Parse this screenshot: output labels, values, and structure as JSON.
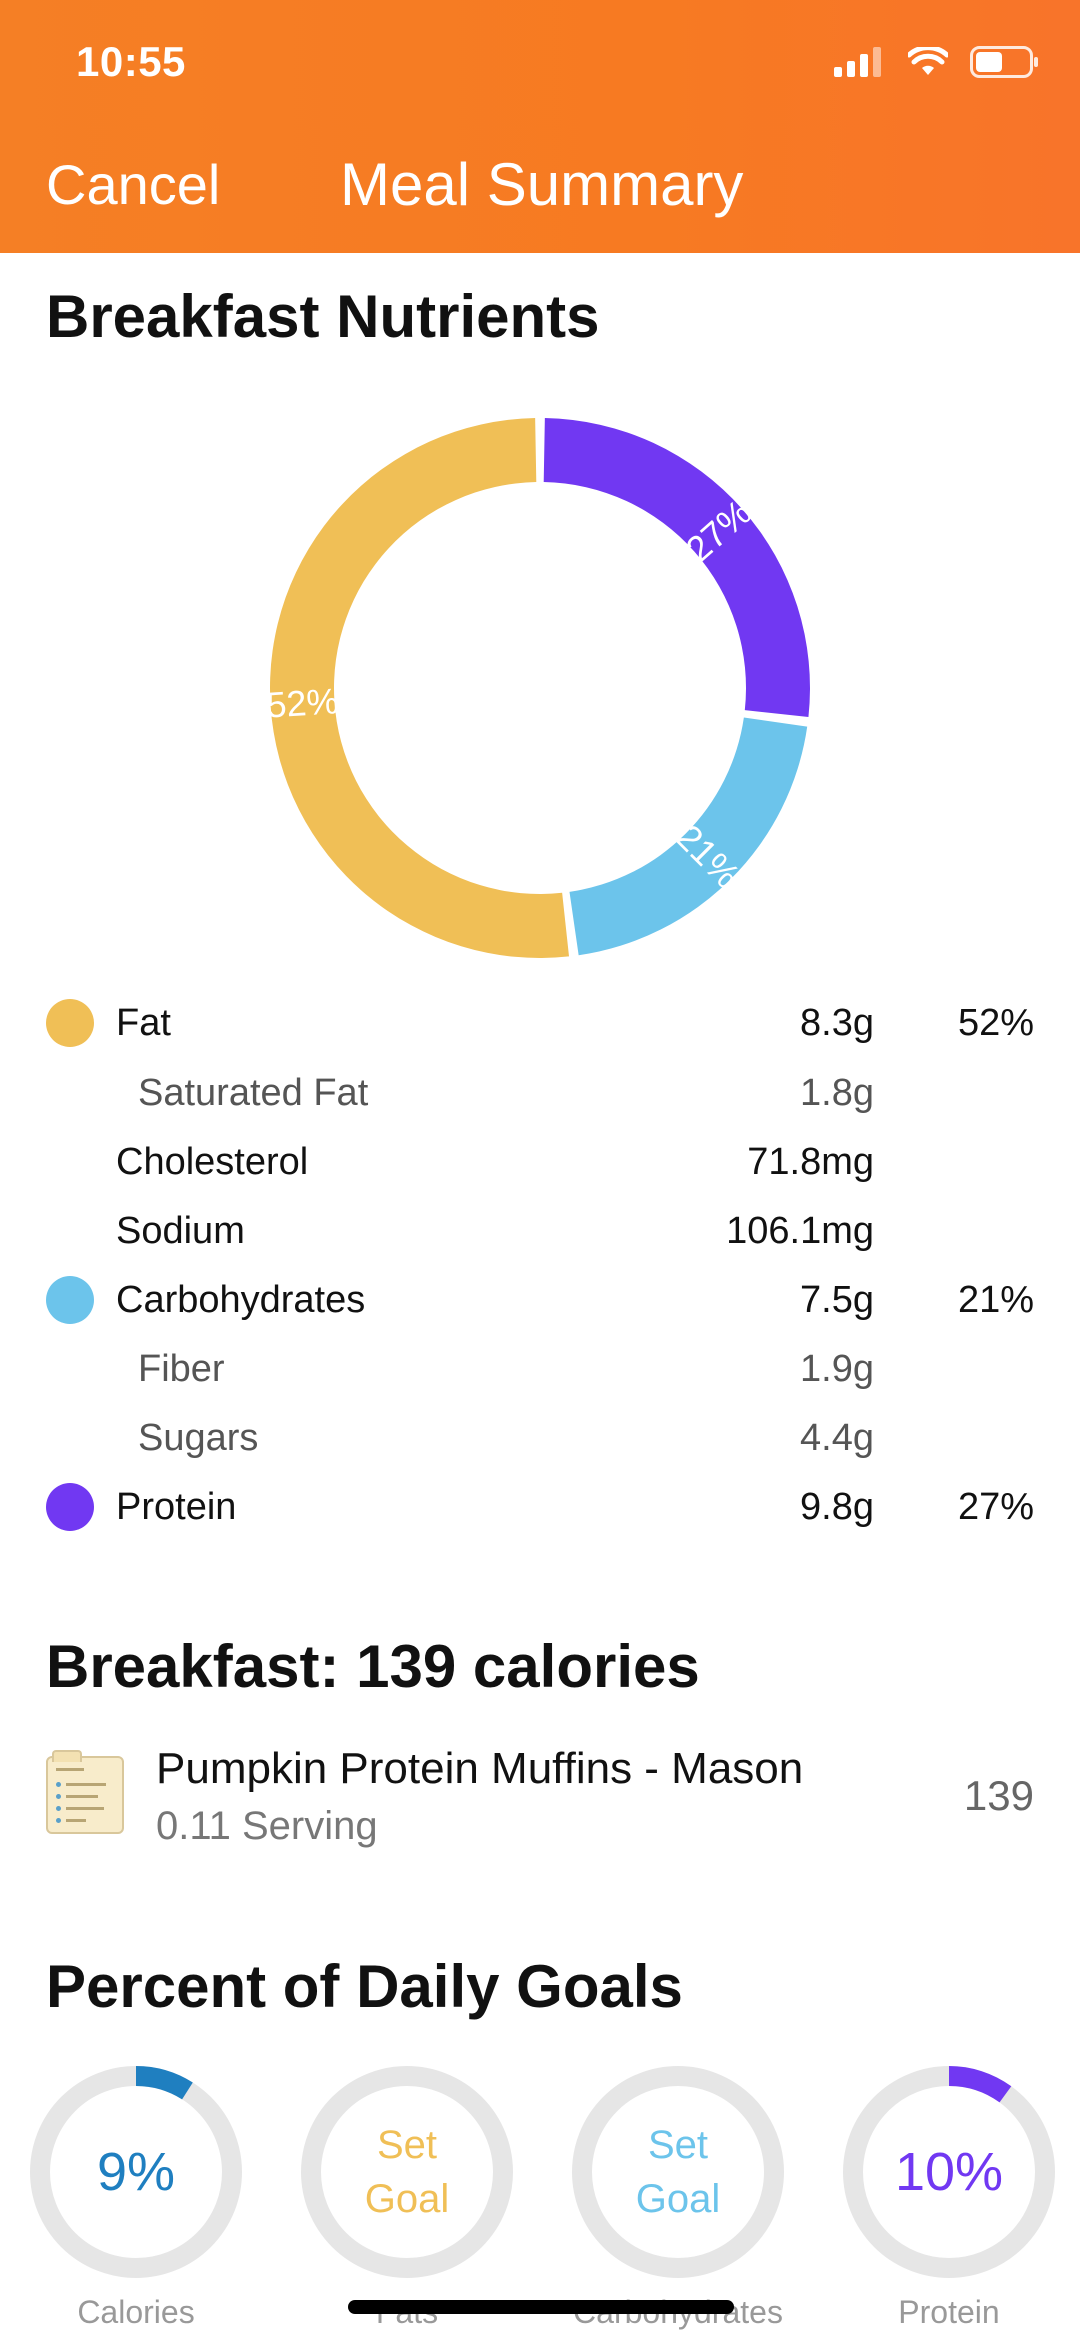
{
  "status_bar": {
    "time": "10:55"
  },
  "header": {
    "cancel_label": "Cancel",
    "title": "Meal Summary"
  },
  "nutrients_section": {
    "title": "Breakfast Nutrients",
    "chart_data": {
      "type": "pie",
      "donut": true,
      "categories": [
        "Fat",
        "Carbohydrates",
        "Protein"
      ],
      "values": [
        52,
        21,
        27
      ],
      "labels": [
        "52%",
        "21%",
        "27%"
      ],
      "colors": [
        "#f0bf56",
        "#6cc4eb",
        "#7138f2"
      ]
    },
    "rows": [
      {
        "name": "Fat",
        "amount": "8.3g",
        "percent": "52%",
        "color": "#f0bf56"
      },
      {
        "name": "Saturated Fat",
        "amount": "1.8g",
        "percent": ""
      },
      {
        "name": "Cholesterol",
        "amount": "71.8mg",
        "percent": ""
      },
      {
        "name": "Sodium",
        "amount": "106.1mg",
        "percent": ""
      },
      {
        "name": "Carbohydrates",
        "amount": "7.5g",
        "percent": "21%",
        "color": "#6cc4eb"
      },
      {
        "name": "Fiber",
        "amount": "1.9g",
        "percent": ""
      },
      {
        "name": "Sugars",
        "amount": "4.4g",
        "percent": ""
      },
      {
        "name": "Protein",
        "amount": "9.8g",
        "percent": "27%",
        "color": "#7138f2"
      }
    ]
  },
  "meal_section": {
    "title": "Breakfast: 139 calories",
    "items": [
      {
        "icon": "recipe-card-icon",
        "name": "Pumpkin Protein Muffins - Mason",
        "serving": "0.11 Serving",
        "calories": "139"
      }
    ]
  },
  "goals_section": {
    "title": "Percent of Daily Goals",
    "goals": [
      {
        "label": "Calories",
        "value_line1": "9%",
        "value_line2": "",
        "progress": 0.09,
        "color": "#1f7fc0"
      },
      {
        "label": "Fats",
        "value_line1": "Set",
        "value_line2": "Goal",
        "progress": 0,
        "color": "#f0bf56"
      },
      {
        "label": "Carbohydrates",
        "value_line1": "Set",
        "value_line2": "Goal",
        "progress": 0,
        "color": "#6cc4eb"
      },
      {
        "label": "Protein",
        "value_line1": "10%",
        "value_line2": "",
        "progress": 0.1,
        "color": "#7138f2"
      }
    ]
  }
}
